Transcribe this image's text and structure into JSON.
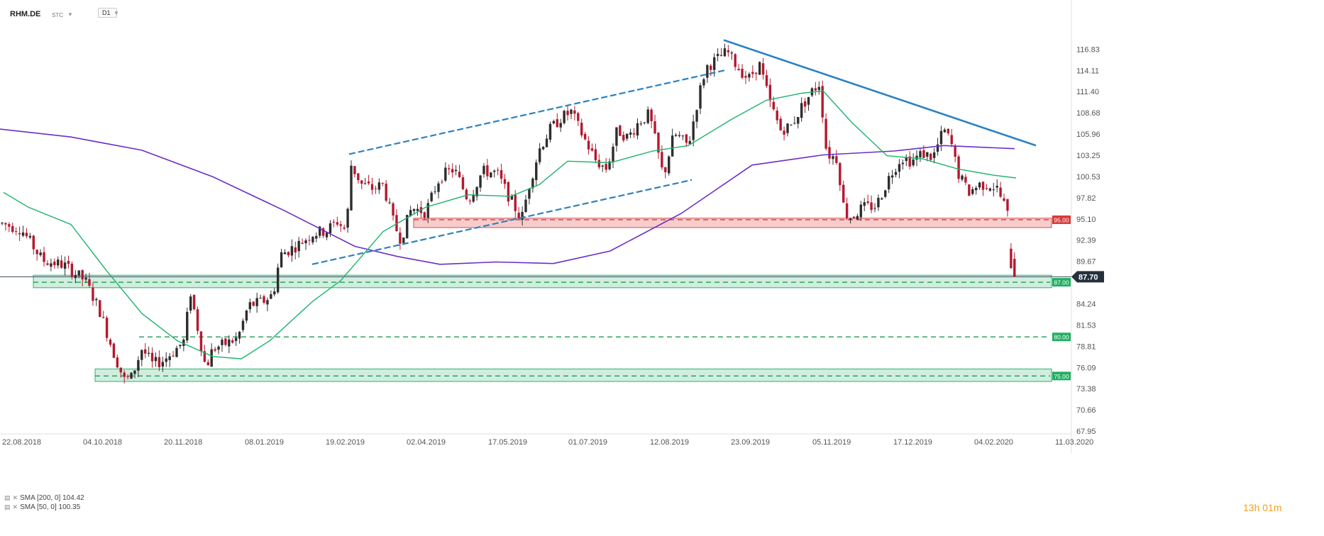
{
  "header": {
    "symbol": "RHM.DE",
    "quote": "STC",
    "timeframe": "D1"
  },
  "indicators": [
    {
      "label": "SMA [200, 0]",
      "value": "104.42",
      "color": "#6a2fc7"
    },
    {
      "label": "SMA [50, 0]",
      "value": "100.35",
      "color": "#1db36b"
    }
  ],
  "timer": {
    "h": "13",
    "h_unit": "h",
    "m": "01",
    "m_unit": "m"
  },
  "colors": {
    "up": "#2d2d2d",
    "down": "#b5182e",
    "sma200": "#6a2fc7",
    "sma50": "#1db36b",
    "trend": "#2a82c5",
    "resistance": "#e04a4a",
    "support": "#2bb36b",
    "price": "#3a4a5a"
  },
  "chart_data": {
    "type": "candlestick",
    "x_ticks": [
      "22.08.2018",
      "04.10.2018",
      "20.11.2018",
      "08.01.2019",
      "19.02.2019",
      "02.04.2019",
      "17.05.2019",
      "01.07.2019",
      "12.08.2019",
      "23.09.2019",
      "05.11.2019",
      "17.12.2019",
      "04.02.2020",
      "11.03.2020"
    ],
    "y_ticks": [
      "116.83",
      "114.11",
      "111.40",
      "108.68",
      "105.96",
      "103.25",
      "100.53",
      "97.82",
      "95.10",
      "92.39",
      "89.67",
      "87.70",
      "84.24",
      "81.53",
      "78.81",
      "76.09",
      "73.38",
      "70.66",
      "67.95"
    ],
    "ylim": [
      67.95,
      119.5
    ],
    "last_price": "87.70",
    "levels": [
      {
        "label": "95.00",
        "value": 95.0,
        "kind": "resistance",
        "zone": [
          94.0,
          95.2
        ]
      },
      {
        "label": "87.00",
        "value": 87.0,
        "kind": "support",
        "zone": [
          86.3,
          87.9
        ]
      },
      {
        "label": "80.00",
        "value": 80.0,
        "kind": "support"
      },
      {
        "label": "75.00",
        "value": 75.0,
        "kind": "support",
        "zone": [
          74.3,
          75.9
        ]
      }
    ],
    "sma200": [
      [
        0,
        106.6
      ],
      [
        100,
        105.6
      ],
      [
        200,
        103.9
      ],
      [
        300,
        100.5
      ],
      [
        400,
        96.2
      ],
      [
        500,
        91.6
      ],
      [
        560,
        90.3
      ],
      [
        620,
        89.3
      ],
      [
        700,
        89.6
      ],
      [
        780,
        89.4
      ],
      [
        860,
        91.0
      ],
      [
        960,
        95.8
      ],
      [
        1060,
        102.0
      ],
      [
        1160,
        103.3
      ],
      [
        1260,
        103.8
      ],
      [
        1330,
        104.5
      ],
      [
        1430,
        104.1
      ]
    ],
    "sma50": [
      [
        5,
        98.5
      ],
      [
        40,
        96.6
      ],
      [
        100,
        94.4
      ],
      [
        150,
        88.5
      ],
      [
        200,
        83.0
      ],
      [
        250,
        79.5
      ],
      [
        300,
        77.5
      ],
      [
        340,
        77.2
      ],
      [
        380,
        79.5
      ],
      [
        440,
        84.5
      ],
      [
        480,
        87.2
      ],
      [
        540,
        93.5
      ],
      [
        600,
        96.6
      ],
      [
        660,
        98.2
      ],
      [
        720,
        98.0
      ],
      [
        760,
        99.5
      ],
      [
        800,
        102.5
      ],
      [
        860,
        102.3
      ],
      [
        920,
        103.8
      ],
      [
        970,
        104.5
      ],
      [
        1030,
        107.8
      ],
      [
        1080,
        110.3
      ],
      [
        1130,
        111.2
      ],
      [
        1160,
        111.5
      ],
      [
        1200,
        107.5
      ],
      [
        1250,
        103.2
      ],
      [
        1300,
        102.8
      ],
      [
        1350,
        101.5
      ],
      [
        1400,
        100.7
      ],
      [
        1432,
        100.35
      ]
    ],
    "trendlines": [
      {
        "from": [
          1020,
          118.0
        ],
        "to": [
          1460,
          104.5
        ],
        "style": "solid"
      },
      {
        "from": [
          492,
          103.4
        ],
        "to": [
          1025,
          114.2
        ],
        "style": "dashed"
      },
      {
        "from": [
          440,
          89.3
        ],
        "to": [
          975,
          100.1
        ],
        "style": "dashed"
      }
    ]
  }
}
